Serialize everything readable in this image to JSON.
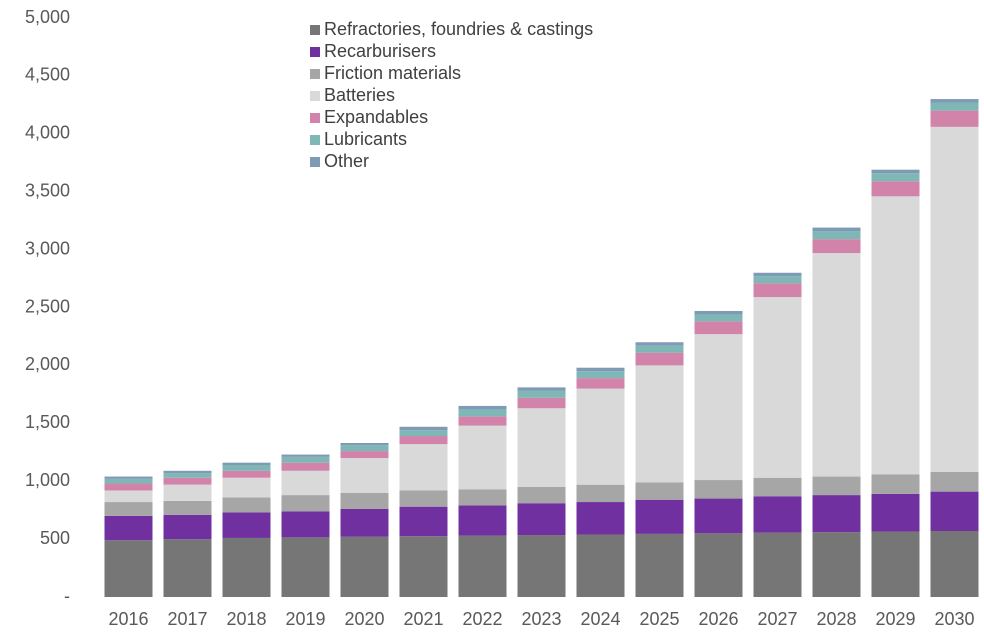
{
  "chart_data": {
    "type": "stacked_bar",
    "categories": [
      "2016",
      "2017",
      "2018",
      "2019",
      "2020",
      "2021",
      "2022",
      "2023",
      "2024",
      "2025",
      "2026",
      "2027",
      "2028",
      "2029",
      "2030"
    ],
    "series": [
      {
        "name": "Refractories, foundries & castings",
        "color": "#767676",
        "values": [
          490,
          500,
          510,
          515,
          520,
          525,
          530,
          535,
          540,
          545,
          550,
          555,
          560,
          565,
          570
        ]
      },
      {
        "name": "Recarburisers",
        "color": "#7030a0",
        "values": [
          210,
          210,
          220,
          225,
          240,
          255,
          260,
          275,
          280,
          295,
          300,
          315,
          320,
          325,
          340
        ]
      },
      {
        "name": "Friction materials",
        "color": "#a6a6a6",
        "values": [
          120,
          120,
          130,
          140,
          140,
          140,
          140,
          140,
          150,
          150,
          160,
          160,
          160,
          170,
          170
        ]
      },
      {
        "name": "Batteries",
        "color": "#d9d9d9",
        "values": [
          100,
          140,
          170,
          210,
          300,
          400,
          550,
          680,
          830,
          1010,
          1260,
          1560,
          1930,
          2400,
          2980
        ]
      },
      {
        "name": "Expandables",
        "color": "#d183aa",
        "values": [
          60,
          60,
          60,
          70,
          60,
          70,
          80,
          90,
          90,
          110,
          110,
          120,
          120,
          130,
          140
        ]
      },
      {
        "name": "Lubricants",
        "color": "#7fb7b7",
        "values": [
          40,
          40,
          50,
          50,
          50,
          50,
          60,
          60,
          60,
          60,
          60,
          60,
          70,
          70,
          70
        ]
      },
      {
        "name": "Other",
        "color": "#7f9ab5",
        "values": [
          20,
          20,
          20,
          20,
          20,
          30,
          30,
          30,
          30,
          30,
          30,
          30,
          30,
          30,
          30
        ]
      }
    ],
    "ylim": [
      0,
      5000
    ],
    "yticks": [
      {
        "value": 0,
        "label": "-"
      },
      500,
      {
        "value": 1000,
        "label": "1,000"
      },
      {
        "value": 1500,
        "label": "1,500"
      },
      {
        "value": 2000,
        "label": "2,000"
      },
      {
        "value": 2500,
        "label": "2,500"
      },
      {
        "value": 3000,
        "label": "3,000"
      },
      {
        "value": 3500,
        "label": "3,500"
      },
      {
        "value": 4000,
        "label": "4,000"
      },
      {
        "value": 4500,
        "label": "4,500"
      },
      {
        "value": 5000,
        "label": "5,000"
      }
    ]
  }
}
